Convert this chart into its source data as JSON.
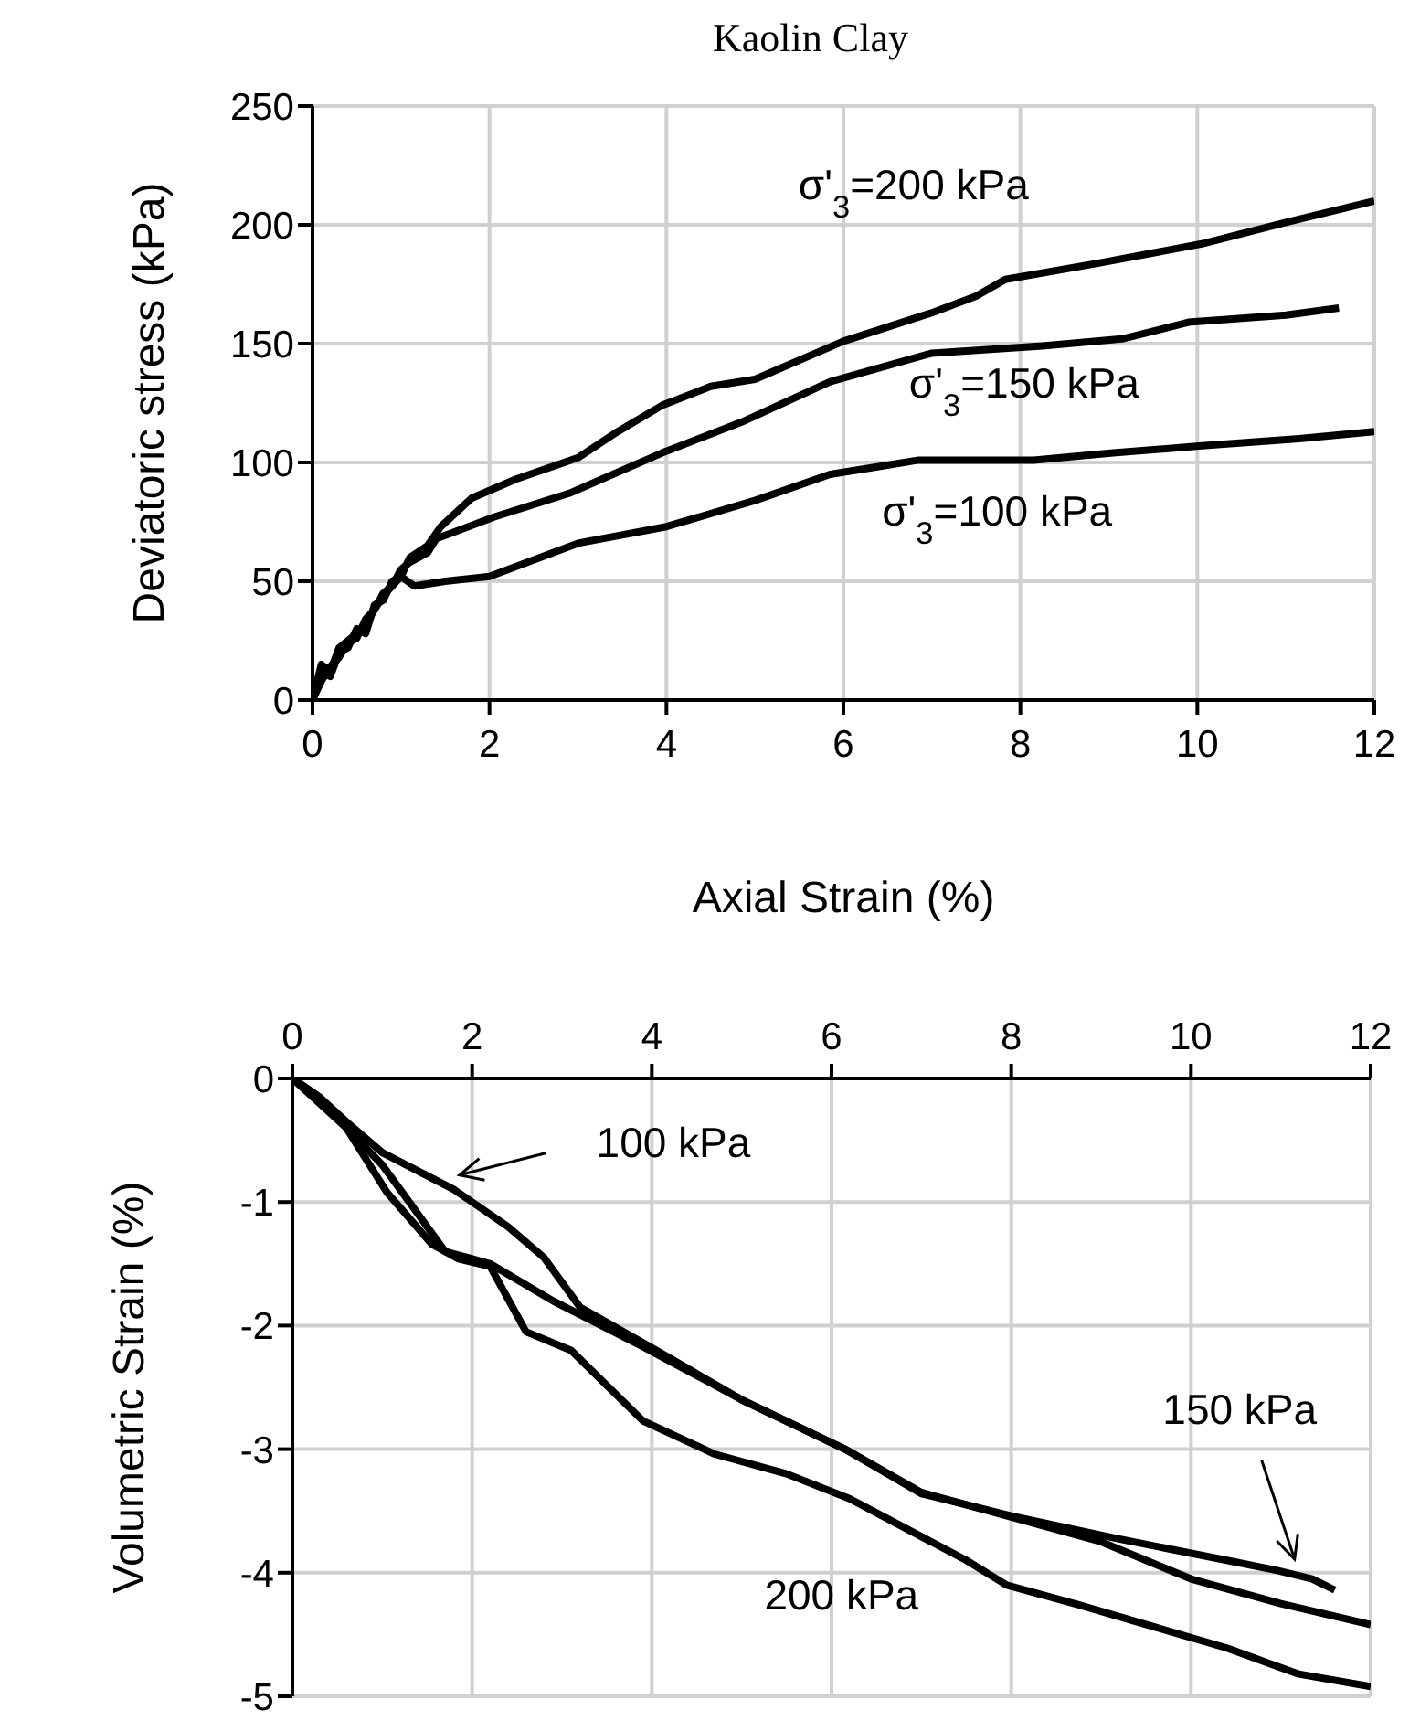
{
  "chart_data": [
    {
      "type": "line",
      "title": "Kaolin Clay",
      "xlabel": "Axial Strain (%)",
      "ylabel": "Deviatoric stress (kPa)",
      "xlim": [
        0,
        12
      ],
      "xticks": [
        0,
        2,
        4,
        6,
        8,
        10,
        12
      ],
      "ylim": [
        0,
        250
      ],
      "yticks": [
        0,
        50,
        100,
        150,
        200,
        250
      ],
      "grid": true,
      "marker": "none",
      "line_style": "solid",
      "series": [
        {
          "name": "σ'$_{3}$=200 kPa",
          "color": "#000000",
          "x": [
            0,
            0.1,
            0.2,
            0.3,
            0.4,
            0.5,
            0.6,
            0.7,
            0.8,
            0.9,
            1.0,
            1.1,
            1.3,
            1.45,
            1.8,
            2.3,
            3.0,
            3.45,
            3.95,
            4.5,
            5.0,
            6.0,
            7.0,
            7.5,
            7.83,
            8.9,
            10.05,
            11.0,
            12.0
          ],
          "values": [
            0,
            12,
            10,
            20,
            22,
            30,
            28,
            40,
            42,
            50,
            52,
            60,
            65,
            73,
            85,
            93,
            102,
            113,
            124,
            132,
            135,
            151,
            163,
            170,
            177,
            184,
            192,
            201,
            210
          ]
        },
        {
          "name": "σ'$_{3}$=150 kPa",
          "color": "#000000",
          "x": [
            0,
            0.1,
            0.2,
            0.3,
            0.4,
            0.5,
            0.6,
            0.7,
            0.8,
            0.9,
            1.0,
            1.1,
            1.3,
            1.4,
            1.55,
            2.05,
            2.9,
            3.95,
            4.85,
            5.85,
            7.0,
            8.25,
            9.15,
            9.9,
            11.0,
            11.6
          ],
          "values": [
            0,
            15,
            12,
            22,
            25,
            28,
            32,
            38,
            45,
            48,
            55,
            58,
            62,
            68,
            70,
            77,
            87,
            104,
            117,
            134,
            146,
            149,
            152,
            159,
            162,
            165
          ]
        },
        {
          "name": "σ'$_{3}$=100 kPa",
          "color": "#000000",
          "x": [
            0,
            0.1,
            0.2,
            0.3,
            0.4,
            0.5,
            0.6,
            0.7,
            0.8,
            0.9,
            1.0,
            1.15,
            1.5,
            2.0,
            3.0,
            4.0,
            5.0,
            5.85,
            6.35,
            6.85,
            8.15,
            9.05,
            10.05,
            11.15,
            12.0
          ],
          "values": [
            0,
            8,
            14,
            18,
            24,
            26,
            34,
            38,
            44,
            48,
            52,
            48,
            50,
            52,
            66,
            73,
            84,
            95,
            98,
            101,
            101,
            104,
            107,
            110,
            113
          ]
        }
      ]
    },
    {
      "type": "line",
      "ylabel": "Volumetric Strain (%)",
      "xlim": [
        0,
        12
      ],
      "xticks": [
        0,
        2,
        4,
        6,
        8,
        10,
        12
      ],
      "ylim": [
        -5,
        0
      ],
      "yticks": [
        -5,
        -4,
        -3,
        -2,
        -1,
        0
      ],
      "grid": true,
      "marker": "none",
      "line_style": "solid",
      "series": [
        {
          "name": "100 kPa",
          "color": "#000000",
          "x": [
            0,
            0.3,
            0.6,
            1.0,
            1.4,
            1.8,
            2.4,
            2.8,
            3.2,
            4.05,
            5.0,
            6.15,
            7.0,
            8.0,
            9.0,
            10.0,
            11.0,
            12.0
          ],
          "values": [
            0,
            -0.15,
            -0.35,
            -0.6,
            -0.75,
            -0.9,
            -1.2,
            -1.45,
            -1.85,
            -2.2,
            -2.6,
            -3.0,
            -3.35,
            -3.55,
            -3.75,
            -4.05,
            -4.25,
            -4.42
          ]
        },
        {
          "name": "150 kPa",
          "color": "#000000",
          "x": [
            0,
            0.3,
            0.6,
            1.0,
            1.3,
            1.7,
            2.2,
            2.9,
            3.9,
            5.0,
            6.15,
            7.0,
            8.0,
            9.15,
            10.4,
            10.95,
            11.35,
            11.6
          ],
          "values": [
            0,
            -0.2,
            -0.4,
            -0.7,
            -1.0,
            -1.4,
            -1.5,
            -1.8,
            -2.17,
            -2.6,
            -3.0,
            -3.36,
            -3.54,
            -3.72,
            -3.9,
            -3.98,
            -4.05,
            -4.14
          ]
        },
        {
          "name": "200 kPa",
          "color": "#000000",
          "x": [
            0,
            0.3,
            0.6,
            1.05,
            1.55,
            1.85,
            2.2,
            2.6,
            3.1,
            3.9,
            4.7,
            5.5,
            6.2,
            7.5,
            7.95,
            8.75,
            9.55,
            10.4,
            11.2,
            12.0
          ],
          "values": [
            0,
            -0.15,
            -0.4,
            -0.92,
            -1.34,
            -1.46,
            -1.52,
            -2.05,
            -2.2,
            -2.77,
            -3.04,
            -3.2,
            -3.4,
            -3.9,
            -4.1,
            -4.26,
            -4.43,
            -4.61,
            -4.82,
            -4.92
          ]
        }
      ]
    }
  ]
}
